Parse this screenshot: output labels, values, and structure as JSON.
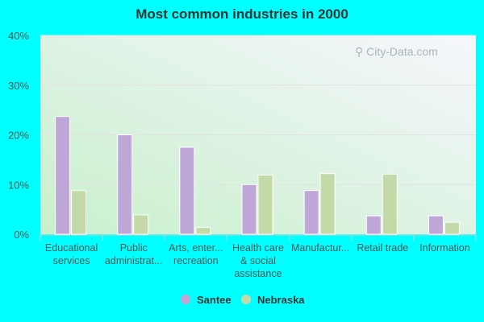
{
  "chart_data": {
    "type": "bar",
    "title": "Most common industries in 2000",
    "categories": [
      [
        "Educational",
        "services"
      ],
      [
        "Public",
        "administrat..."
      ],
      [
        "Arts, enter...",
        "recreation"
      ],
      [
        "Health care",
        "& social",
        "assistance"
      ],
      [
        "Manufactur..."
      ],
      [
        "Retail trade"
      ],
      [
        "Information"
      ]
    ],
    "series": [
      {
        "name": "Santee",
        "color": "#bfa8d8",
        "values": [
          23.7,
          20.0,
          17.5,
          10.0,
          8.8,
          3.7,
          3.7
        ]
      },
      {
        "name": "Nebraska",
        "color": "#c4d9a8",
        "values": [
          8.8,
          3.9,
          1.4,
          11.9,
          12.2,
          12.1,
          2.4
        ]
      }
    ],
    "yticks": [
      "0%",
      "10%",
      "20%",
      "30%",
      "40%"
    ],
    "ylim": [
      0,
      40
    ],
    "grid": true,
    "legend_position": "bottom",
    "watermark": "City-Data.com"
  }
}
